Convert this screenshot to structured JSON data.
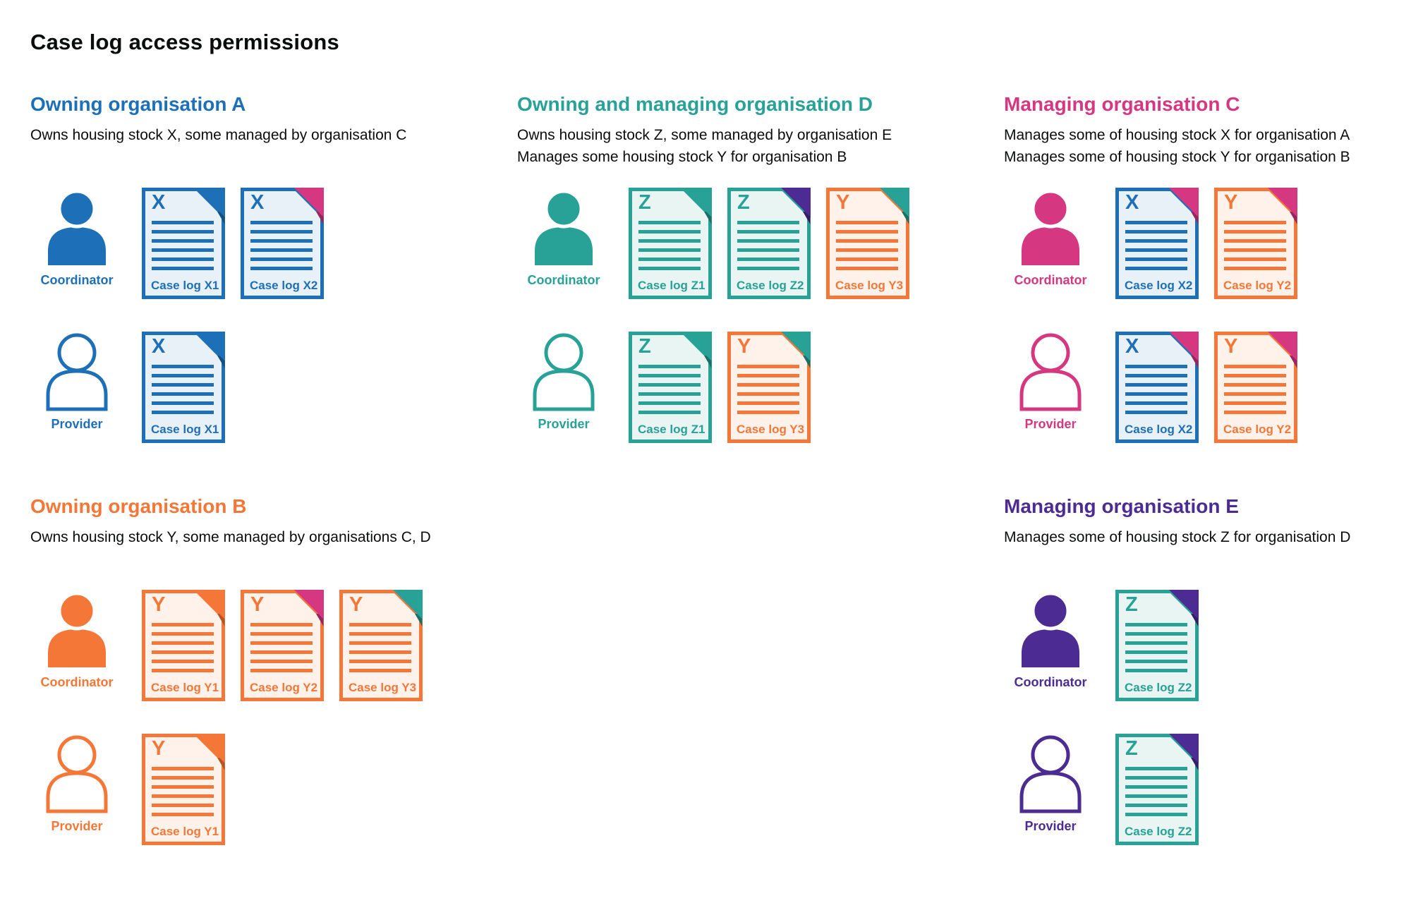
{
  "title": "Case log access permissions",
  "colors": {
    "blue": {
      "main": "#1d70b8",
      "tint": "#e8f1f8",
      "dark": "#14507f"
    },
    "teal": {
      "main": "#28a197",
      "tint": "#e9f5f3",
      "dark": "#1b6f68"
    },
    "orange": {
      "main": "#f47738",
      "tint": "#fef2ea",
      "dark": "#b85425"
    },
    "pink": {
      "main": "#d53880",
      "tint": "#fbebf2",
      "dark": "#97265b"
    },
    "purple": {
      "main": "#4c2c92",
      "tint": "#edeaf4",
      "dark": "#341e66"
    }
  },
  "roles": {
    "coordinator": "Coordinator",
    "provider": "Provider"
  },
  "case_log_types": {
    "X1": {
      "label": "Case log X1",
      "letter": "X",
      "stock": "blue",
      "fold": "blue"
    },
    "X2": {
      "label": "Case log X2",
      "letter": "X",
      "stock": "blue",
      "fold": "pink"
    },
    "Y1": {
      "label": "Case log Y1",
      "letter": "Y",
      "stock": "orange",
      "fold": "orange"
    },
    "Y2": {
      "label": "Case log Y2",
      "letter": "Y",
      "stock": "orange",
      "fold": "pink"
    },
    "Y3": {
      "label": "Case log Y3",
      "letter": "Y",
      "stock": "orange",
      "fold": "teal"
    },
    "Z1": {
      "label": "Case log Z1",
      "letter": "Z",
      "stock": "teal",
      "fold": "teal"
    },
    "Z2": {
      "label": "Case log Z2",
      "letter": "Z",
      "stock": "teal",
      "fold": "purple"
    }
  },
  "organisations": [
    {
      "id": "A",
      "name": "Owning organisation A",
      "color": "blue",
      "layout": {
        "row": 1,
        "column": 1
      },
      "description": [
        "Owns housing stock X, some managed by organisation C"
      ],
      "coordinator_logs": [
        "X1",
        "X2"
      ],
      "provider_logs": [
        "X1"
      ]
    },
    {
      "id": "D",
      "name": "Owning and managing organisation D",
      "color": "teal",
      "layout": {
        "row": 1,
        "column": 2
      },
      "description": [
        "Owns housing stock Z, some managed by organisation E",
        "Manages some housing stock Y for organisation B"
      ],
      "coordinator_logs": [
        "Z1",
        "Z2",
        "Y3"
      ],
      "provider_logs": [
        "Z1",
        "Y3"
      ]
    },
    {
      "id": "C",
      "name": "Managing organisation C",
      "color": "pink",
      "layout": {
        "row": 1,
        "column": 3
      },
      "description": [
        "Manages some of housing stock X for organisation A",
        "Manages some of housing stock Y for organisation B"
      ],
      "coordinator_logs": [
        "X2",
        "Y2"
      ],
      "provider_logs": [
        "X2",
        "Y2"
      ]
    },
    {
      "id": "B",
      "name": "Owning organisation B",
      "color": "orange",
      "layout": {
        "row": 2,
        "column": 1
      },
      "description": [
        "Owns housing stock Y, some managed by organisations C, D"
      ],
      "coordinator_logs": [
        "Y1",
        "Y2",
        "Y3"
      ],
      "provider_logs": [
        "Y1"
      ]
    },
    {
      "id": "E",
      "name": "Managing organisation E",
      "color": "purple",
      "layout": {
        "row": 2,
        "column": 3
      },
      "description": [
        "Manages some of housing stock Z for organisation D"
      ],
      "coordinator_logs": [
        "Z2"
      ],
      "provider_logs": [
        "Z2"
      ]
    }
  ]
}
